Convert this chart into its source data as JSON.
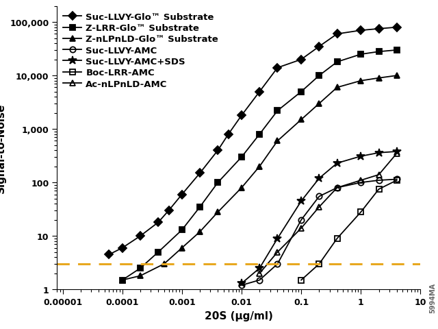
{
  "series": [
    {
      "label": "Suc-LLVY-Glo™ Substrate",
      "marker": "D",
      "fillstyle": "full",
      "color": "#000000",
      "x": [
        6e-05,
        0.0001,
        0.0002,
        0.0004,
        0.0006,
        0.001,
        0.002,
        0.004,
        0.006,
        0.01,
        0.02,
        0.04,
        0.1,
        0.2,
        0.4,
        1.0,
        2.0,
        4.0
      ],
      "y": [
        4.5,
        6,
        10,
        18,
        30,
        60,
        150,
        400,
        800,
        1800,
        5000,
        14000,
        20000,
        35000,
        60000,
        70000,
        75000,
        80000
      ]
    },
    {
      "label": "Z-LRR-Glo™ Substrate",
      "marker": "s",
      "fillstyle": "full",
      "color": "#000000",
      "x": [
        0.0001,
        0.0002,
        0.0004,
        0.001,
        0.002,
        0.004,
        0.01,
        0.02,
        0.04,
        0.1,
        0.2,
        0.4,
        1.0,
        2.0,
        4.0
      ],
      "y": [
        1.5,
        2.5,
        5,
        13,
        35,
        100,
        300,
        800,
        2200,
        5000,
        10000,
        18000,
        25000,
        28000,
        30000
      ]
    },
    {
      "label": "Z-nLPnLD-Glo™ Substrate",
      "marker": "^",
      "fillstyle": "full",
      "color": "#000000",
      "x": [
        0.0001,
        0.0002,
        0.0005,
        0.001,
        0.002,
        0.004,
        0.01,
        0.02,
        0.04,
        0.1,
        0.2,
        0.4,
        1.0,
        2.0,
        4.0
      ],
      "y": [
        1.5,
        1.8,
        3,
        6,
        12,
        28,
        80,
        200,
        600,
        1500,
        3000,
        6000,
        8000,
        9000,
        10000
      ]
    },
    {
      "label": "Suc-LLVY-AMC",
      "marker": "o",
      "fillstyle": "none",
      "color": "#000000",
      "x": [
        0.01,
        0.02,
        0.04,
        0.1,
        0.2,
        0.4,
        1.0,
        2.0,
        4.0
      ],
      "y": [
        1.2,
        1.5,
        3,
        20,
        55,
        80,
        100,
        110,
        115
      ]
    },
    {
      "label": "Suc-LLVY-AMC+SDS",
      "marker": "*",
      "fillstyle": "full",
      "color": "#000000",
      "x": [
        0.01,
        0.02,
        0.04,
        0.1,
        0.2,
        0.4,
        1.0,
        2.0,
        4.0
      ],
      "y": [
        1.3,
        2.5,
        9,
        45,
        120,
        230,
        310,
        360,
        380
      ]
    },
    {
      "label": "Boc-LRR-AMC",
      "marker": "s",
      "fillstyle": "none",
      "color": "#000000",
      "x": [
        0.1,
        0.2,
        0.4,
        1.0,
        2.0,
        4.0
      ],
      "y": [
        1.5,
        3,
        9,
        28,
        75,
        110
      ]
    },
    {
      "label": "Ac-nLPnLD-AMC",
      "marker": "^",
      "fillstyle": "none",
      "color": "#000000",
      "x": [
        0.02,
        0.04,
        0.1,
        0.2,
        0.4,
        1.0,
        2.0,
        4.0
      ],
      "y": [
        2,
        5,
        14,
        35,
        80,
        110,
        140,
        350
      ]
    }
  ],
  "dashed_line_y": 3.0,
  "dashed_line_color": "#e8a820",
  "xlim": [
    8e-06,
    10
  ],
  "ylim": [
    1,
    200000
  ],
  "xlabel": "20S (µg/ml)",
  "ylabel": "Signal-to-Noise",
  "xticks": [
    1e-05,
    0.0001,
    0.001,
    0.01,
    0.1,
    1,
    10
  ],
  "xtick_labels": [
    "0.00001",
    "0.0001",
    "0.001",
    "0.01",
    "0.1",
    "1",
    "10"
  ],
  "yticks": [
    1,
    10,
    100,
    1000,
    10000,
    100000
  ],
  "ytick_labels": [
    "1",
    "10",
    "100",
    "1,000",
    "10,000",
    "100,000"
  ],
  "watermark": "5994MA",
  "background_color": "#ffffff",
  "legend_fontsize": 9.5,
  "axis_fontsize": 11
}
